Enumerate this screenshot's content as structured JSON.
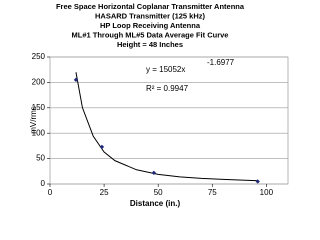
{
  "chart_data": {
    "type": "scatter",
    "title_lines": [
      "Free Space Horizontal Coplanar Transmitter Antenna",
      "HASARD Transmitter (125 kHz)",
      "HP Loop Receiving Antenna",
      "ML#1 Through ML#5 Data Average Fit Curve",
      "Height = 48 Inches"
    ],
    "x_label": "Distance (in.)",
    "y_label": "mV/rms",
    "series": [
      {
        "color": "#1f2a7a",
        "x": [
          12,
          24,
          48,
          96
        ],
        "values": [
          205,
          73,
          22,
          5
        ]
      }
    ],
    "trendline": {
      "color": "#000000",
      "x": [
        12,
        15,
        20,
        25,
        30,
        40,
        50,
        60,
        70,
        80,
        96
      ],
      "values": [
        220,
        150,
        94,
        63,
        46,
        28,
        19,
        14,
        11,
        9,
        6.5
      ]
    },
    "annotation": {
      "equation": "y = 15052x",
      "exponent": "-1.6977",
      "r_squared": "R² = 0.9947"
    },
    "xlim": [
      0,
      110
    ],
    "xticks": [
      0,
      25,
      50,
      75,
      100
    ],
    "ylim": [
      0,
      250
    ],
    "yticks": [
      0,
      50,
      100,
      150,
      200,
      250
    ],
    "grid": true
  }
}
